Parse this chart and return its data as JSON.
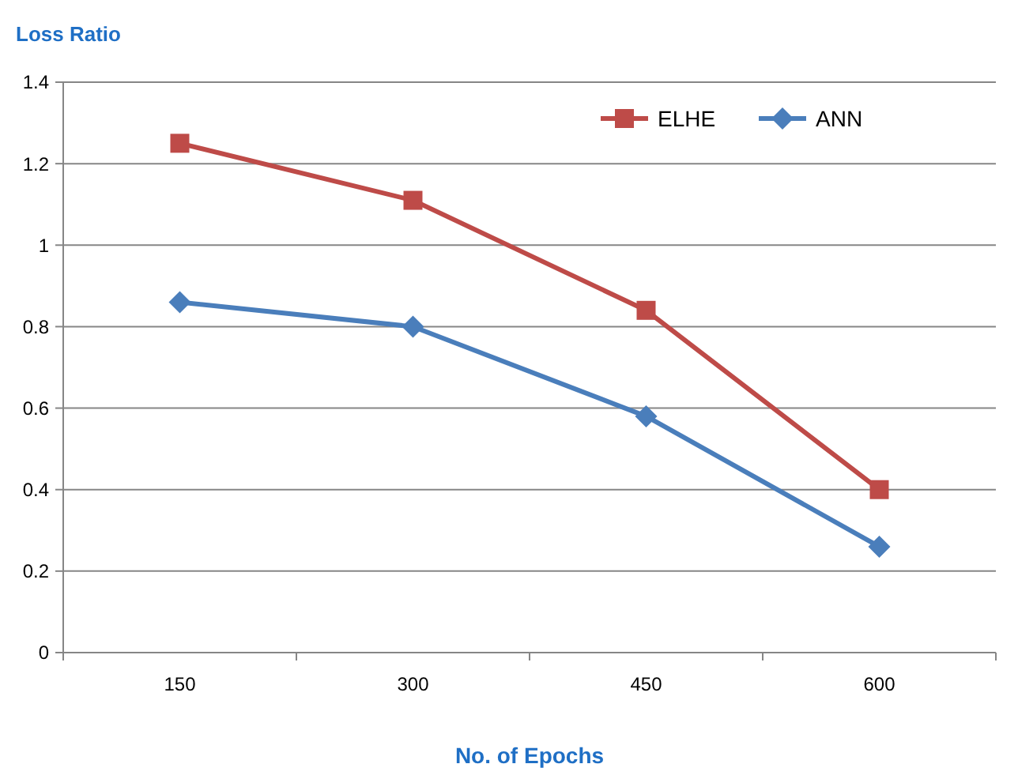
{
  "chart_data": {
    "type": "line",
    "ylabel": "Loss Ratio",
    "xlabel": "No. of Epochs",
    "categories": [
      "150",
      "300",
      "450",
      "600"
    ],
    "series": [
      {
        "name": "ELHE",
        "color": "#be4b48",
        "marker": "square",
        "values": [
          1.25,
          1.11,
          0.84,
          0.4
        ]
      },
      {
        "name": "ANN",
        "color": "#4a7ebb",
        "marker": "diamond",
        "values": [
          0.86,
          0.8,
          0.58,
          0.26
        ]
      }
    ],
    "ylim": [
      0,
      1.4
    ],
    "yticks": [
      0,
      0.2,
      0.4,
      0.6,
      0.8,
      1,
      1.2,
      1.4
    ],
    "grid": "y",
    "legend": "top right"
  }
}
